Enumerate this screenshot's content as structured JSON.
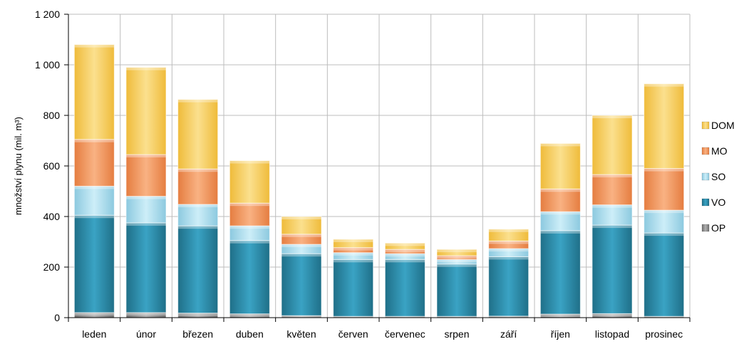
{
  "chart_data": {
    "type": "bar",
    "stacked": true,
    "title": "",
    "xlabel": "",
    "ylabel": "množství plynu (mil. m³)",
    "ylim": [
      0,
      1200
    ],
    "yticks": [
      0,
      200,
      400,
      600,
      800,
      1000,
      1200
    ],
    "ytick_labels": [
      "0",
      "200",
      "400",
      "600",
      "800",
      "1 000",
      "1 200"
    ],
    "grid": true,
    "legend_position": "right",
    "categories": [
      "leden",
      "únor",
      "březen",
      "duben",
      "květen",
      "červen",
      "červenec",
      "srpen",
      "září",
      "říjen",
      "listopad",
      "prosinec"
    ],
    "series": [
      {
        "name": "OP",
        "color": "#8c8c8c",
        "values": [
          20,
          20,
          18,
          15,
          8,
          5,
          5,
          5,
          6,
          14,
          16,
          5
        ]
      },
      {
        "name": "VO",
        "color": "#2b8aa8",
        "values": [
          385,
          355,
          345,
          290,
          245,
          225,
          225,
          207,
          235,
          330,
          350,
          330
        ]
      },
      {
        "name": "SO",
        "color": "#a6dbee",
        "values": [
          115,
          105,
          85,
          58,
          37,
          27,
          23,
          18,
          32,
          75,
          80,
          90
        ]
      },
      {
        "name": "MO",
        "color": "#f4955c",
        "values": [
          185,
          165,
          140,
          90,
          40,
          20,
          17,
          15,
          30,
          90,
          120,
          165
        ]
      },
      {
        "name": "DOM",
        "color": "#f5cc58",
        "values": [
          375,
          345,
          275,
          168,
          70,
          33,
          25,
          25,
          47,
          180,
          234,
          335
        ]
      }
    ],
    "legend_order": [
      "DOM",
      "MO",
      "SO",
      "VO",
      "OP"
    ]
  }
}
